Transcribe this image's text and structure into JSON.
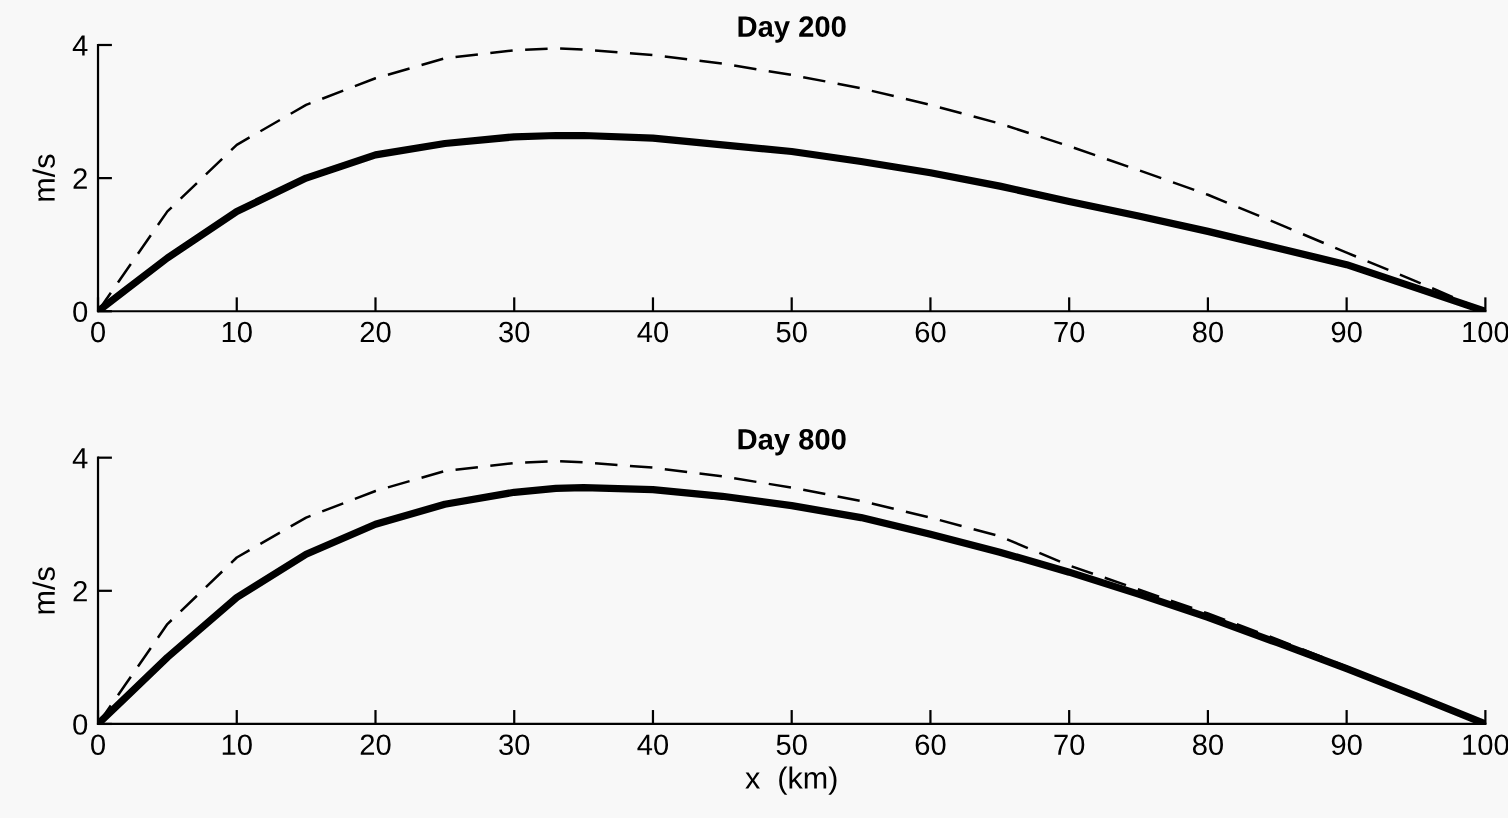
{
  "chart_data": [
    {
      "type": "line",
      "title": "Day 200",
      "ylabel": "m/s",
      "xlim": [
        0,
        100
      ],
      "ylim": [
        0,
        4
      ],
      "xticks": [
        0,
        10,
        20,
        30,
        40,
        50,
        60,
        70,
        80,
        90,
        100
      ],
      "yticks": [
        0,
        2,
        4
      ],
      "grid": false,
      "legend": false,
      "x": [
        0,
        2,
        5,
        10,
        15,
        20,
        25,
        30,
        33,
        35,
        40,
        45,
        50,
        55,
        60,
        65,
        70,
        75,
        80,
        85,
        90,
        95,
        100
      ],
      "series": [
        {
          "color": "#000000",
          "line_style": "solid",
          "values": [
            0,
            0.32,
            0.8,
            1.5,
            2.0,
            2.35,
            2.52,
            2.62,
            2.64,
            2.64,
            2.6,
            2.5,
            2.4,
            2.25,
            2.08,
            1.88,
            1.65,
            1.43,
            1.2,
            0.95,
            0.7,
            0.35,
            0
          ]
        },
        {
          "color": "#000000",
          "line_style": "dashed",
          "values": [
            0,
            0.6,
            1.5,
            2.5,
            3.1,
            3.5,
            3.8,
            3.92,
            3.95,
            3.93,
            3.85,
            3.72,
            3.55,
            3.35,
            3.1,
            2.82,
            2.48,
            2.12,
            1.75,
            1.32,
            0.88,
            0.45,
            0
          ]
        }
      ]
    },
    {
      "type": "line",
      "title": "Day 800",
      "ylabel": "m/s",
      "xlabel": "x  (km)",
      "xlim": [
        0,
        100
      ],
      "ylim": [
        0,
        4
      ],
      "xticks": [
        0,
        10,
        20,
        30,
        40,
        50,
        60,
        70,
        80,
        90,
        100
      ],
      "yticks": [
        0,
        2,
        4
      ],
      "grid": false,
      "legend": false,
      "x": [
        0,
        2,
        5,
        10,
        15,
        20,
        25,
        30,
        33,
        35,
        40,
        45,
        50,
        55,
        60,
        65,
        70,
        75,
        80,
        85,
        90,
        95,
        100
      ],
      "series": [
        {
          "color": "#000000",
          "line_style": "solid",
          "values": [
            0,
            0.4,
            1.0,
            1.9,
            2.55,
            3.0,
            3.3,
            3.48,
            3.54,
            3.55,
            3.52,
            3.42,
            3.28,
            3.1,
            2.85,
            2.58,
            2.28,
            1.95,
            1.6,
            1.22,
            0.83,
            0.42,
            0
          ]
        },
        {
          "color": "#000000",
          "line_style": "dashed",
          "values": [
            0,
            0.6,
            1.5,
            2.5,
            3.1,
            3.5,
            3.8,
            3.92,
            3.95,
            3.93,
            3.85,
            3.72,
            3.55,
            3.35,
            3.1,
            2.82,
            2.38,
            2.02,
            1.66,
            1.27,
            0.86,
            0.44,
            0
          ]
        }
      ]
    }
  ]
}
